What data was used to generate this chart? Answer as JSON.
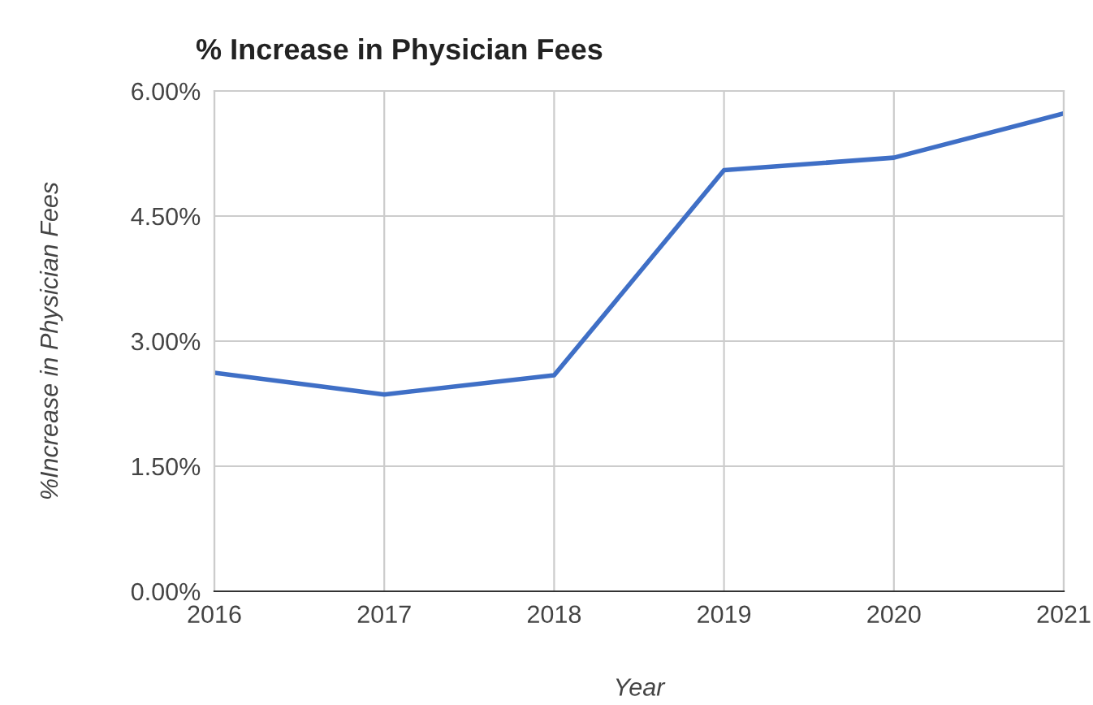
{
  "chart_data": {
    "type": "line",
    "title": "% Increase in Physician Fees",
    "xlabel": "Year",
    "ylabel": "%Increase in Physician Fees",
    "x": [
      2016,
      2017,
      2018,
      2019,
      2020,
      2021
    ],
    "series": [
      {
        "color": "#3f6fc6",
        "values": [
          2.62,
          2.36,
          2.59,
          5.05,
          5.2,
          5.73
        ]
      }
    ],
    "xlim": [
      2016,
      2021
    ],
    "xticks": [
      2016,
      2017,
      2018,
      2019,
      2020,
      2021
    ],
    "ylim": [
      0,
      6
    ],
    "yticks": [
      {
        "value": 0,
        "label": "0.00%"
      },
      {
        "value": 1.5,
        "label": "1.50%"
      },
      {
        "value": 3,
        "label": "3.00%"
      },
      {
        "value": 4.5,
        "label": "4.50%"
      },
      {
        "value": 6,
        "label": "6.00%"
      }
    ],
    "grid": true,
    "marker": "none",
    "line_style": "solid"
  }
}
